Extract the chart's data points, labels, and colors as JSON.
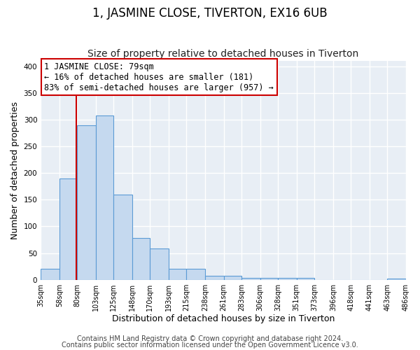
{
  "title": "1, JASMINE CLOSE, TIVERTON, EX16 6UB",
  "subtitle": "Size of property relative to detached houses in Tiverton",
  "xlabel": "Distribution of detached houses by size in Tiverton",
  "ylabel": "Number of detached properties",
  "bin_edges": [
    35,
    58,
    80,
    103,
    125,
    148,
    170,
    193,
    215,
    238,
    261,
    283,
    306,
    328,
    351,
    373,
    396,
    418,
    441,
    463,
    486
  ],
  "bin_counts": [
    20,
    190,
    290,
    308,
    160,
    78,
    58,
    20,
    20,
    8,
    8,
    4,
    4,
    4,
    4,
    0,
    0,
    0,
    0,
    2
  ],
  "bar_color": "#c5d9ef",
  "bar_edge_color": "#5b9bd5",
  "vline_x": 79,
  "vline_color": "#cc0000",
  "annotation_line1": "1 JASMINE CLOSE: 79sqm",
  "annotation_line2": "← 16% of detached houses are smaller (181)",
  "annotation_line3": "83% of semi-detached houses are larger (957) →",
  "box_edge_color": "#cc0000",
  "tick_labels": [
    "35sqm",
    "58sqm",
    "80sqm",
    "103sqm",
    "125sqm",
    "148sqm",
    "170sqm",
    "193sqm",
    "215sqm",
    "238sqm",
    "261sqm",
    "283sqm",
    "306sqm",
    "328sqm",
    "351sqm",
    "373sqm",
    "396sqm",
    "418sqm",
    "441sqm",
    "463sqm",
    "486sqm"
  ],
  "ylim": [
    0,
    410
  ],
  "yticks": [
    0,
    50,
    100,
    150,
    200,
    250,
    300,
    350,
    400
  ],
  "footer_lines": [
    "Contains HM Land Registry data © Crown copyright and database right 2024.",
    "Contains public sector information licensed under the Open Government Licence v3.0."
  ],
  "plot_bg_color": "#e8eef5",
  "fig_bg_color": "#ffffff",
  "grid_color": "#ffffff",
  "title_fontsize": 12,
  "subtitle_fontsize": 10,
  "axis_label_fontsize": 9,
  "tick_fontsize": 7,
  "footer_fontsize": 7,
  "annotation_fontsize": 8.5
}
